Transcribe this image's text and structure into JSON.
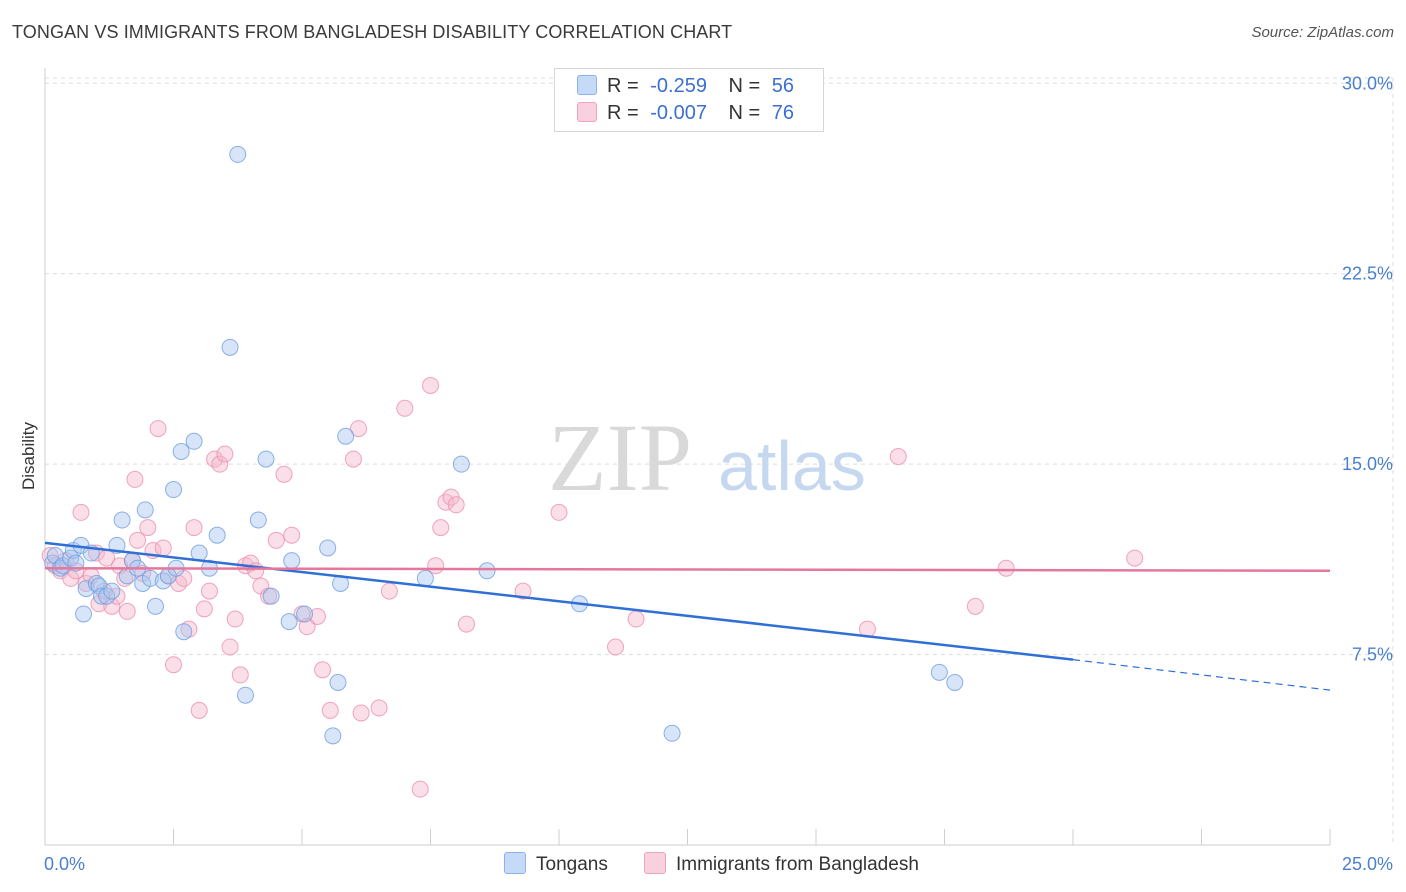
{
  "header": {
    "title": "TONGAN VS IMMIGRANTS FROM BANGLADESH DISABILITY CORRELATION CHART",
    "source": "Source: ZipAtlas.com"
  },
  "watermark": {
    "zip": "ZIP",
    "atlas": "atlas"
  },
  "legend": {
    "rows": [
      {
        "r_label": "R =",
        "r_value": "-0.259",
        "n_label": "N =",
        "n_value": "56",
        "color": "#a8c6f0"
      },
      {
        "r_label": "R =",
        "r_value": "-0.007",
        "n_label": "N =",
        "n_value": "76",
        "color": "#f5b8cb"
      }
    ]
  },
  "bottom_legend": {
    "items": [
      {
        "label": "Tongans",
        "color": "#a8c6f0"
      },
      {
        "label": "Immigrants from Bangladesh",
        "color": "#f5b8cb"
      }
    ]
  },
  "chart_data": {
    "type": "scatter",
    "title": "TONGAN VS IMMIGRANTS FROM BANGLADESH DISABILITY CORRELATION CHART",
    "xlabel": "",
    "ylabel": "Disability",
    "xlim": [
      0,
      25
    ],
    "ylim": [
      0,
      31
    ],
    "y_ticks": [
      7.5,
      15.0,
      22.5,
      30.0
    ],
    "y_tick_labels": [
      "7.5%",
      "15.0%",
      "22.5%",
      "30.0%"
    ],
    "x_tick_labels": [
      "0.0%",
      "25.0%"
    ],
    "grid": true,
    "legend_position": "top-center",
    "series": [
      {
        "name": "Tongans",
        "color": "#6f9fe0",
        "fill": "#a8c6f0",
        "trend": {
          "x0": 0,
          "y0": 11.9,
          "x1": 20,
          "y1": 7.3,
          "dash_to_x": 25,
          "dash_to_y": 6.1
        },
        "points": [
          [
            0.15,
            11.1
          ],
          [
            0.2,
            11.4
          ],
          [
            0.3,
            10.9
          ],
          [
            0.35,
            11.0
          ],
          [
            0.5,
            11.3
          ],
          [
            0.55,
            11.6
          ],
          [
            0.6,
            11.1
          ],
          [
            0.7,
            11.8
          ],
          [
            0.75,
            9.1
          ],
          [
            0.8,
            10.1
          ],
          [
            0.9,
            11.5
          ],
          [
            1.0,
            10.3
          ],
          [
            1.05,
            10.2
          ],
          [
            1.1,
            9.8
          ],
          [
            1.2,
            9.8
          ],
          [
            1.3,
            10.0
          ],
          [
            1.4,
            11.8
          ],
          [
            1.5,
            12.8
          ],
          [
            1.6,
            10.6
          ],
          [
            1.7,
            11.2
          ],
          [
            1.8,
            10.9
          ],
          [
            1.9,
            10.3
          ],
          [
            1.95,
            13.2
          ],
          [
            2.05,
            10.5
          ],
          [
            2.15,
            9.4
          ],
          [
            2.3,
            10.4
          ],
          [
            2.4,
            10.6
          ],
          [
            2.5,
            14.0
          ],
          [
            2.55,
            10.9
          ],
          [
            2.65,
            15.5
          ],
          [
            2.7,
            8.4
          ],
          [
            2.9,
            15.9
          ],
          [
            3.0,
            11.5
          ],
          [
            3.2,
            10.9
          ],
          [
            3.35,
            12.2
          ],
          [
            3.6,
            19.6
          ],
          [
            3.75,
            27.2
          ],
          [
            3.9,
            5.9
          ],
          [
            4.15,
            12.8
          ],
          [
            4.3,
            15.2
          ],
          [
            4.4,
            9.8
          ],
          [
            4.75,
            8.8
          ],
          [
            4.8,
            11.2
          ],
          [
            5.05,
            9.1
          ],
          [
            5.5,
            11.7
          ],
          [
            5.7,
            6.4
          ],
          [
            5.85,
            16.1
          ],
          [
            5.6,
            4.3
          ],
          [
            5.75,
            10.3
          ],
          [
            7.4,
            10.5
          ],
          [
            8.1,
            15.0
          ],
          [
            8.6,
            10.8
          ],
          [
            10.4,
            9.5
          ],
          [
            12.2,
            4.4
          ],
          [
            17.4,
            6.8
          ],
          [
            17.7,
            6.4
          ]
        ]
      },
      {
        "name": "Immigrants from Bangladesh",
        "color": "#ec8fae",
        "fill": "#f5b8cb",
        "trend": {
          "x0": 0,
          "y0": 10.9,
          "x1": 25,
          "y1": 10.8
        },
        "points": [
          [
            0.1,
            11.4
          ],
          [
            0.2,
            11.0
          ],
          [
            0.3,
            10.8
          ],
          [
            0.4,
            11.2
          ],
          [
            0.5,
            10.5
          ],
          [
            0.6,
            10.8
          ],
          [
            0.7,
            13.1
          ],
          [
            0.8,
            10.3
          ],
          [
            0.9,
            10.6
          ],
          [
            1.0,
            11.5
          ],
          [
            1.05,
            9.5
          ],
          [
            1.15,
            10.0
          ],
          [
            1.2,
            11.3
          ],
          [
            1.3,
            9.4
          ],
          [
            1.4,
            9.8
          ],
          [
            1.45,
            11.0
          ],
          [
            1.55,
            10.5
          ],
          [
            1.6,
            9.2
          ],
          [
            1.7,
            11.2
          ],
          [
            1.75,
            14.4
          ],
          [
            1.8,
            12.0
          ],
          [
            1.9,
            10.7
          ],
          [
            2.0,
            12.5
          ],
          [
            2.1,
            11.6
          ],
          [
            2.2,
            16.4
          ],
          [
            2.3,
            11.7
          ],
          [
            2.4,
            10.6
          ],
          [
            2.5,
            7.1
          ],
          [
            2.6,
            10.3
          ],
          [
            2.7,
            10.5
          ],
          [
            2.8,
            8.5
          ],
          [
            2.9,
            12.5
          ],
          [
            3.0,
            5.3
          ],
          [
            3.1,
            9.3
          ],
          [
            3.2,
            10.0
          ],
          [
            3.3,
            15.2
          ],
          [
            3.4,
            15.0
          ],
          [
            3.5,
            15.4
          ],
          [
            3.6,
            7.8
          ],
          [
            3.7,
            8.9
          ],
          [
            3.8,
            6.7
          ],
          [
            3.9,
            11.0
          ],
          [
            4.0,
            11.1
          ],
          [
            4.1,
            10.8
          ],
          [
            4.2,
            10.2
          ],
          [
            4.35,
            9.8
          ],
          [
            4.5,
            12.0
          ],
          [
            4.65,
            14.6
          ],
          [
            4.8,
            12.2
          ],
          [
            5.0,
            9.1
          ],
          [
            5.1,
            8.6
          ],
          [
            5.3,
            9.0
          ],
          [
            5.4,
            6.9
          ],
          [
            5.55,
            5.3
          ],
          [
            6.0,
            15.2
          ],
          [
            6.1,
            16.4
          ],
          [
            6.15,
            5.2
          ],
          [
            6.5,
            5.4
          ],
          [
            6.7,
            10.0
          ],
          [
            7.0,
            17.2
          ],
          [
            7.3,
            2.2
          ],
          [
            7.5,
            18.1
          ],
          [
            7.6,
            11.0
          ],
          [
            7.7,
            12.5
          ],
          [
            7.8,
            13.5
          ],
          [
            7.9,
            13.7
          ],
          [
            8.0,
            13.4
          ],
          [
            8.2,
            8.7
          ],
          [
            9.3,
            10.0
          ],
          [
            10.0,
            13.1
          ],
          [
            11.1,
            7.8
          ],
          [
            11.5,
            8.9
          ],
          [
            16.0,
            8.5
          ],
          [
            16.6,
            15.3
          ],
          [
            18.1,
            9.4
          ],
          [
            18.7,
            10.9
          ],
          [
            21.2,
            11.3
          ]
        ]
      }
    ]
  }
}
